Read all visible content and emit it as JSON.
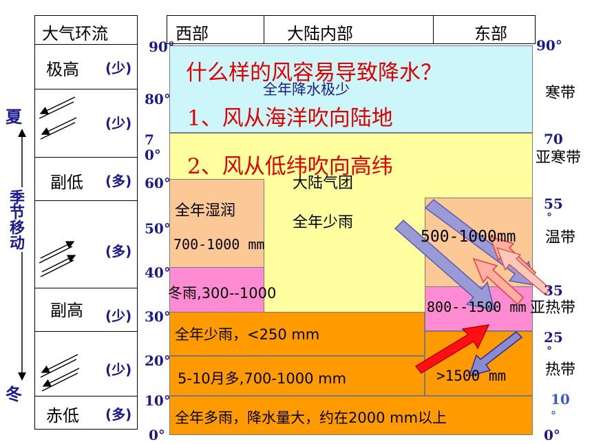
{
  "circulation": {
    "header": "大气环流",
    "rows": [
      {
        "label": "极高",
        "precip": "(少)"
      },
      {
        "label": "",
        "precip": "(少)"
      },
      {
        "label": "副低",
        "precip": "(多)"
      },
      {
        "label": "",
        "precip": "(多)"
      },
      {
        "label": "副高",
        "precip": "(少)"
      },
      {
        "label": "",
        "precip": "(少)"
      },
      {
        "label": "赤低",
        "precip": "(多)"
      }
    ]
  },
  "season": {
    "summer": "夏",
    "shift": "季节移动",
    "winter": "冬"
  },
  "header": {
    "west": "西部",
    "interior": "大陆内部",
    "east": "东部"
  },
  "lat_left": [
    "90°",
    "80°",
    "70°",
    "60°",
    "50°",
    "40°",
    "30°",
    "20°",
    "10°",
    "0°"
  ],
  "lat_right": [
    "90°",
    "70",
    "55",
    "35",
    "25",
    "10",
    "0°"
  ],
  "zones": {
    "cold": "寒带",
    "subcold": "亚寒带",
    "temperate": "温带",
    "subtropical": "亚热带",
    "tropical": "热带"
  },
  "overlay": {
    "question": "什么样的风容易导致降水？",
    "point1": "1、风从海洋吹向陆地",
    "point2": "2、风从低纬吹向高纬"
  },
  "cells": {
    "polar": "全年降水极少",
    "air_mass": "大陆气团",
    "interior_dry": "全年少雨",
    "west_humid": "全年湿润",
    "west_humid_mm": "700-1000 mm",
    "west_winter_rain": "冬雨,300--1000",
    "east_temperate": "500-1000mm",
    "east_subtropical": "800--1500 mm",
    "desert": "全年少雨，<250 mm",
    "monsoon_west": "5-10月多,700-1000 mm",
    "monsoon_east": ">1500 mm",
    "equatorial": "全年多雨，降水量大，约在2000 mm以上"
  },
  "colors": {
    "cyan": "#ccf6f9",
    "yellow": "#ffffa0",
    "peach": "#fcc896",
    "pink": "#ff8cd2",
    "orange": "#ff9a00",
    "red_text": "#e00000",
    "navy": "#1a1a8c"
  }
}
